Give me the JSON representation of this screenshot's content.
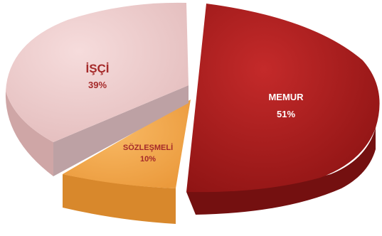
{
  "chart_data": {
    "type": "pie",
    "title": "",
    "slices": [
      {
        "label": "MEMUR",
        "value": 51,
        "value_label": "51%",
        "color": "#a81d1d",
        "side_color": "#741010",
        "text_color": "#ffffff"
      },
      {
        "label": "SÖZLEŞMELİ",
        "value": 10,
        "value_label": "10%",
        "color": "#f2a650",
        "side_color": "#d8882c",
        "text_color": "#a52a2a"
      },
      {
        "label": "İŞÇİ",
        "value": 39,
        "value_label": "39%",
        "color": "#eecdcd",
        "side_color": "#cfa6a6",
        "text_color": "#a52a2a"
      }
    ],
    "exploded": true,
    "three_d": true,
    "legend": "none",
    "grid": false
  }
}
